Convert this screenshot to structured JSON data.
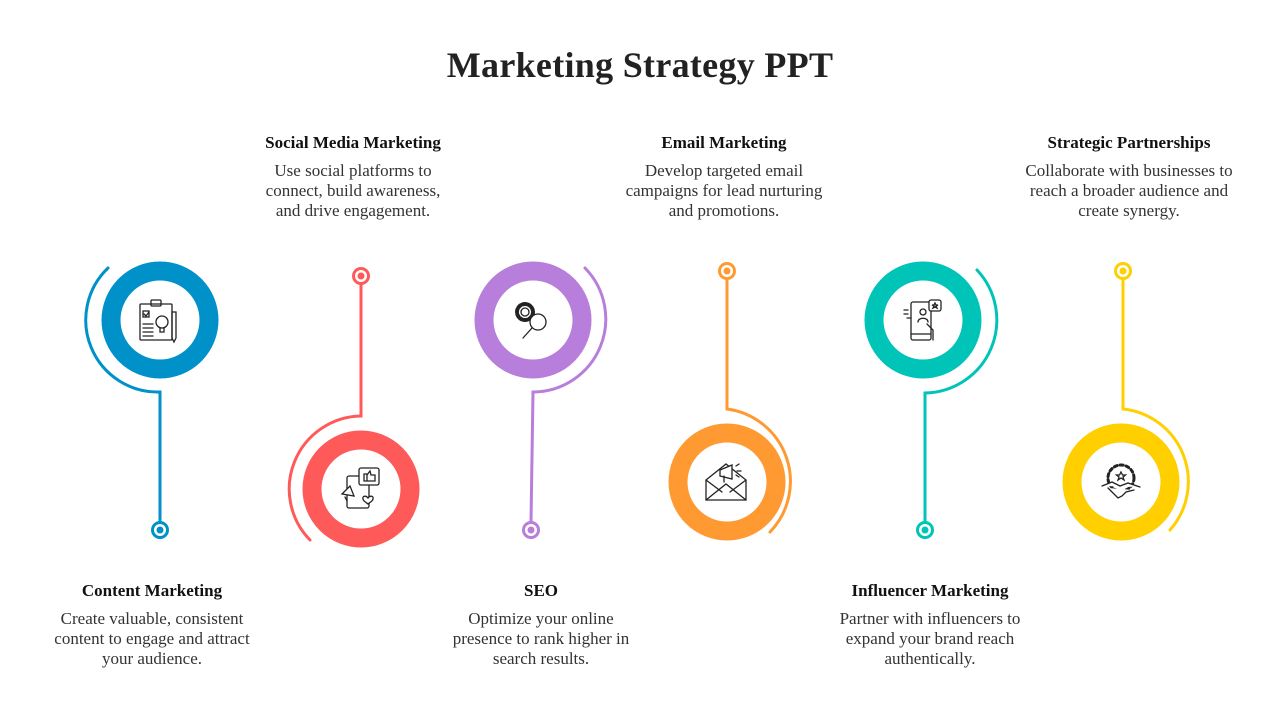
{
  "title": "Marketing Strategy PPT",
  "items": [
    {
      "heading": "Content Marketing",
      "text": "Create valuable, consistent content to engage and attract your audience.",
      "color": "#0091C8",
      "icon": "clipboard-idea-icon"
    },
    {
      "heading": "Social Media Marketing",
      "text": "Use social platforms to connect, build awareness, and drive engagement.",
      "color": "#FF5A5A",
      "icon": "social-media-megaphone-icon"
    },
    {
      "heading": "SEO",
      "text": "Optimize your online presence to rank higher in search results.",
      "color": "#B87EDB",
      "icon": "gear-search-icon"
    },
    {
      "heading": "Email Marketing",
      "text": "Develop targeted email campaigns for lead nurturing and promotions.",
      "color": "#FF9A33",
      "icon": "envelope-megaphone-icon"
    },
    {
      "heading": "Influencer Marketing",
      "text": "Partner with influencers to expand your brand reach authentically.",
      "color": "#00C4B8",
      "icon": "phone-influencer-icon"
    },
    {
      "heading": "Strategic Partnerships",
      "text": "Collaborate with businesses to reach a broader audience and create synergy.",
      "color": "#FFCF00",
      "icon": "handshake-gear-icon"
    }
  ]
}
